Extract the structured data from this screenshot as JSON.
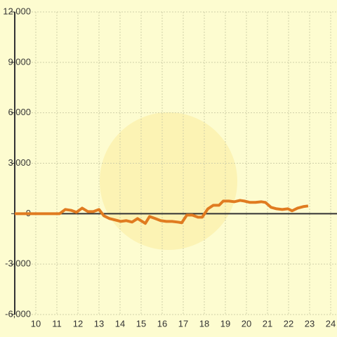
{
  "chart_data": {
    "type": "line",
    "x": [
      9.0,
      11.13,
      11.4,
      11.67,
      11.93,
      12.2,
      12.47,
      12.73,
      13.0,
      13.23,
      13.5,
      13.77,
      14.03,
      14.3,
      14.57,
      14.83,
      15.1,
      15.2,
      15.4,
      15.67,
      15.93,
      16.2,
      16.47,
      16.73,
      16.93,
      17.17,
      17.43,
      17.7,
      17.9,
      18.17,
      18.43,
      18.7,
      18.9,
      19.17,
      19.43,
      19.7,
      19.9,
      20.17,
      20.43,
      20.7,
      20.9,
      21.17,
      21.43,
      21.7,
      21.97,
      22.17,
      22.43,
      22.7,
      22.93
    ],
    "series": [
      {
        "color": "#e07b20",
        "values": [
          0,
          0,
          250,
          200,
          80,
          330,
          125,
          125,
          250,
          -125,
          -290,
          -375,
          -460,
          -415,
          -500,
          -290,
          -500,
          -580,
          -170,
          -290,
          -415,
          -460,
          -460,
          -500,
          -540,
          -85,
          -85,
          -210,
          -210,
          290,
          500,
          500,
          750,
          750,
          710,
          790,
          750,
          670,
          670,
          710,
          670,
          375,
          290,
          250,
          290,
          170,
          330,
          420,
          460
        ]
      }
    ],
    "xlim": [
      9,
      24.3
    ],
    "ylim": [
      -6000,
      12000
    ],
    "xticks": [
      10,
      11,
      12,
      13,
      14,
      15,
      16,
      17,
      18,
      19,
      20,
      21,
      22,
      23,
      24
    ],
    "yticks": [
      {
        "value": -6000,
        "label": "-6,000"
      },
      {
        "value": -3000,
        "label": "-3,000"
      },
      0,
      {
        "value": 3000,
        "label": "3,000"
      },
      {
        "value": 6000,
        "label": "6,000"
      },
      {
        "value": 9000,
        "label": "9,000"
      },
      {
        "value": 12000,
        "label": "12,000"
      }
    ],
    "grid": true
  }
}
